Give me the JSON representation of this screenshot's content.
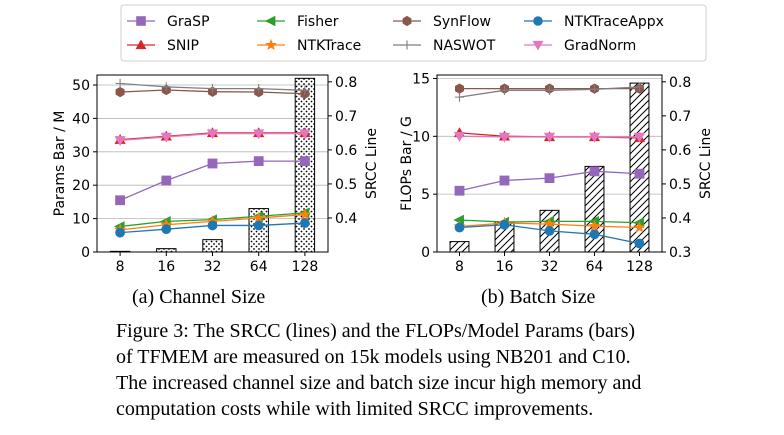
{
  "legend": {
    "entries": [
      {
        "name": "GraSP",
        "color": "#9467bd",
        "marker": "square"
      },
      {
        "name": "Fisher",
        "color": "#2ca02c",
        "marker": "triangle-left"
      },
      {
        "name": "SynFlow",
        "color": "#8c564b",
        "marker": "hexagon"
      },
      {
        "name": "NTKTraceAppx",
        "color": "#1f77b4",
        "marker": "circle"
      },
      {
        "name": "SNIP",
        "color": "#d62728",
        "marker": "triangle-up"
      },
      {
        "name": "NTKTrace",
        "color": "#ff7f0e",
        "marker": "star"
      },
      {
        "name": "NASWOT",
        "color": "#7f7f7f",
        "marker": "plus"
      },
      {
        "name": "GradNorm",
        "color": "#e377c2",
        "marker": "triangle-down"
      }
    ]
  },
  "chart_data": [
    {
      "type": "bar",
      "subcaption": "(a) Channel Size",
      "categories": [
        "8",
        "16",
        "32",
        "64",
        "128"
      ],
      "bar_series": {
        "values": [
          0.2,
          1.0,
          3.7,
          13.0,
          52.0
        ],
        "hatch": "dots"
      },
      "ylabel_left": "Params Bar / M",
      "ylabel_right": "SRCC Line",
      "ylim_left": [
        0,
        53
      ],
      "yticks_left": [
        0,
        10,
        20,
        30,
        40,
        50
      ],
      "ylim_right": [
        0.3,
        0.82
      ],
      "yticks_right": [
        0.4,
        0.5,
        0.6,
        0.7,
        0.8
      ],
      "grid": true,
      "series": [
        {
          "name": "GraSP",
          "values": [
            0.452,
            0.51,
            0.56,
            0.567,
            0.567
          ]
        },
        {
          "name": "SNIP",
          "values": [
            0.63,
            0.64,
            0.65,
            0.65,
            0.65
          ]
        },
        {
          "name": "Fisher",
          "values": [
            0.375,
            0.39,
            0.395,
            0.405,
            0.415
          ]
        },
        {
          "name": "NTKTrace",
          "values": [
            0.365,
            0.38,
            0.39,
            0.4,
            0.41
          ]
        },
        {
          "name": "SynFlow",
          "values": [
            0.77,
            0.776,
            0.771,
            0.77,
            0.765
          ]
        },
        {
          "name": "NASWOT",
          "values": [
            0.795,
            0.785,
            0.78,
            0.78,
            0.775
          ]
        },
        {
          "name": "NTKTraceAppx",
          "values": [
            0.357,
            0.367,
            0.378,
            0.378,
            0.385
          ]
        },
        {
          "name": "GradNorm",
          "values": [
            0.628,
            0.638,
            0.648,
            0.648,
            0.648
          ]
        }
      ]
    },
    {
      "type": "bar",
      "subcaption": "(b) Batch Size",
      "categories": [
        "8",
        "16",
        "32",
        "64",
        "128"
      ],
      "bar_series": {
        "values": [
          0.9,
          2.6,
          3.6,
          7.4,
          14.6
        ],
        "hatch": "diagonal"
      },
      "ylabel_left": "FLOPs Bar / G",
      "ylabel_right": "SRCC Line",
      "ylim_left": [
        0,
        15.3
      ],
      "yticks_left": [
        0,
        5,
        10,
        15
      ],
      "ylim_right": [
        0.3,
        0.82
      ],
      "yticks_right": [
        0.3,
        0.4,
        0.5,
        0.6,
        0.7,
        0.8
      ],
      "grid": true,
      "series": [
        {
          "name": "GraSP",
          "values": [
            0.48,
            0.51,
            0.517,
            0.537,
            0.53
          ]
        },
        {
          "name": "SNIP",
          "values": [
            0.65,
            0.64,
            0.638,
            0.638,
            0.635
          ]
        },
        {
          "name": "Fisher",
          "values": [
            0.394,
            0.388,
            0.39,
            0.39,
            0.386
          ]
        },
        {
          "name": "NTKTrace",
          "values": [
            0.375,
            0.385,
            0.382,
            0.376,
            0.372
          ]
        },
        {
          "name": "SynFlow",
          "values": [
            0.78,
            0.78,
            0.78,
            0.78,
            0.78
          ]
        },
        {
          "name": "NASWOT",
          "values": [
            0.755,
            0.775,
            0.775,
            0.778,
            0.785
          ]
        },
        {
          "name": "NTKTraceAppx",
          "values": [
            0.372,
            0.38,
            0.362,
            0.352,
            0.325
          ]
        },
        {
          "name": "GradNorm",
          "values": [
            0.64,
            0.638,
            0.638,
            0.638,
            0.638
          ]
        }
      ]
    }
  ],
  "caption": {
    "lines": [
      "Figure 3: The SRCC (lines) and the FLOPs/Model Params (bars)",
      "of TFMEM are measured on 15k models using NB201 and C10.",
      "The increased channel size and batch size incur high memory and",
      "computation costs while with limited SRCC improvements."
    ]
  }
}
